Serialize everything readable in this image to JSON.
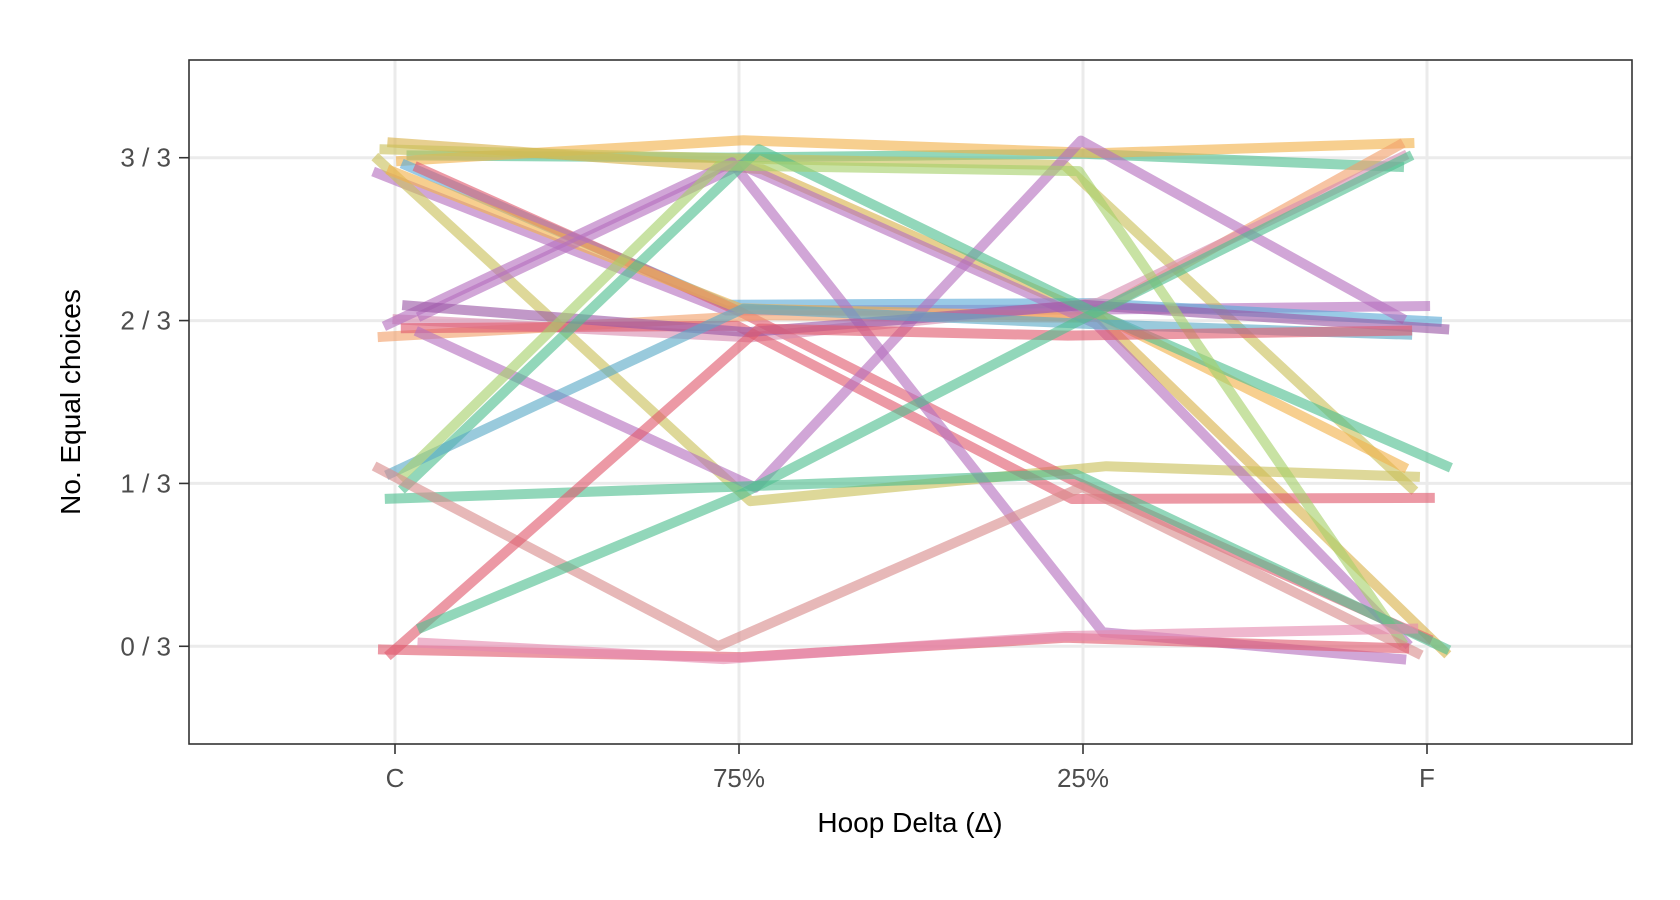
{
  "chart_data": {
    "type": "line",
    "xlabel": "Hoop Delta (Δ)",
    "ylabel": "No. Equal choices",
    "categories": [
      "C",
      "75%",
      "25%",
      "F"
    ],
    "y_ticks": [
      0,
      1,
      2,
      3
    ],
    "y_tick_labels": [
      "0 / 3",
      "1 / 3",
      "2 / 3",
      "3 / 3"
    ],
    "ylim": [
      -0.6,
      3.6
    ],
    "grid": true,
    "legend": "none",
    "palette": [
      "#66c2a5",
      "#fc8d62",
      "#8da0cb",
      "#e78ac3",
      "#a6d854",
      "#ffd92f",
      "#e5c494",
      "#5aa9d6",
      "#e05a6e",
      "#b46fbf",
      "#f2b24a",
      "#c9c05a",
      "#4fbf8f",
      "#d98c8c"
    ],
    "series": [
      {
        "values": [
          3,
          3,
          3,
          3
        ],
        "color": "#4fbf8f"
      },
      {
        "values": [
          3,
          3,
          3,
          3
        ],
        "color": "#f2b24a"
      },
      {
        "values": [
          3,
          3,
          2,
          0
        ],
        "color": "#d9b24a"
      },
      {
        "values": [
          3,
          2,
          2,
          2
        ],
        "color": "#b46fbf"
      },
      {
        "values": [
          3,
          3,
          3,
          1
        ],
        "color": "#c9c05a"
      },
      {
        "values": [
          3,
          2,
          2,
          2
        ],
        "color": "#5aa9d6"
      },
      {
        "values": [
          3,
          1,
          1,
          1
        ],
        "color": "#c9c05a"
      },
      {
        "values": [
          3,
          2,
          1,
          0
        ],
        "color": "#e05a6e"
      },
      {
        "values": [
          3,
          2,
          2,
          1
        ],
        "color": "#f2b24a"
      },
      {
        "values": [
          2,
          2,
          2,
          3
        ],
        "color": "#f2a06a"
      },
      {
        "values": [
          2,
          2,
          2,
          3
        ],
        "color": "#d98cb0"
      },
      {
        "values": [
          2,
          3,
          2,
          0
        ],
        "color": "#b46fbf"
      },
      {
        "values": [
          2,
          2,
          1,
          1
        ],
        "color": "#e05a6e"
      },
      {
        "values": [
          2,
          1,
          3,
          2
        ],
        "color": "#b46fbf"
      },
      {
        "values": [
          2,
          3,
          0,
          0
        ],
        "color": "#b46fbf"
      },
      {
        "values": [
          2,
          2,
          2,
          2
        ],
        "color": "#9b59a6"
      },
      {
        "values": [
          1,
          3,
          2,
          1
        ],
        "color": "#4fbf8f"
      },
      {
        "values": [
          1,
          2,
          2,
          2
        ],
        "color": "#5aa9c6"
      },
      {
        "values": [
          1,
          3,
          3,
          0
        ],
        "color": "#a6d06a"
      },
      {
        "values": [
          1,
          1,
          1,
          0
        ],
        "color": "#4fbf8f"
      },
      {
        "values": [
          1,
          0,
          1,
          0
        ],
        "color": "#d98c8c"
      },
      {
        "values": [
          0,
          2,
          2,
          2
        ],
        "color": "#e05a6e"
      },
      {
        "values": [
          0,
          1,
          2,
          3
        ],
        "color": "#4fbf8f"
      },
      {
        "values": [
          0,
          0,
          0,
          0
        ],
        "color": "#e05a6e"
      },
      {
        "values": [
          0,
          0,
          0,
          0
        ],
        "color": "#e58ab0"
      }
    ]
  }
}
